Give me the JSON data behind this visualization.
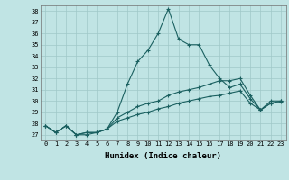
{
  "title": "",
  "xlabel": "Humidex (Indice chaleur)",
  "ylabel": "",
  "bg_color": "#c0e4e4",
  "grid_color": "#a0c8c8",
  "line_color": "#1a6060",
  "xlim": [
    -0.5,
    23.5
  ],
  "ylim": [
    26.5,
    38.5
  ],
  "yticks": [
    27,
    28,
    29,
    30,
    31,
    32,
    33,
    34,
    35,
    36,
    37,
    38
  ],
  "xticks": [
    0,
    1,
    2,
    3,
    4,
    5,
    6,
    7,
    8,
    9,
    10,
    11,
    12,
    13,
    14,
    15,
    16,
    17,
    18,
    19,
    20,
    21,
    22,
    23
  ],
  "line1": [
    27.8,
    27.2,
    27.8,
    27.0,
    27.0,
    27.2,
    27.5,
    29.0,
    31.5,
    33.5,
    34.5,
    36.0,
    38.2,
    35.5,
    35.0,
    35.0,
    33.2,
    32.0,
    31.2,
    31.5,
    30.2,
    29.2,
    30.0,
    30.0
  ],
  "line2": [
    27.8,
    27.2,
    27.8,
    27.0,
    27.2,
    27.2,
    27.5,
    28.5,
    29.0,
    29.5,
    29.8,
    30.0,
    30.5,
    30.8,
    31.0,
    31.2,
    31.5,
    31.8,
    31.8,
    32.0,
    30.5,
    29.2,
    29.8,
    30.0
  ],
  "line3": [
    27.8,
    27.2,
    27.8,
    27.0,
    27.2,
    27.2,
    27.5,
    28.2,
    28.5,
    28.8,
    29.0,
    29.3,
    29.5,
    29.8,
    30.0,
    30.2,
    30.4,
    30.5,
    30.7,
    30.9,
    29.8,
    29.2,
    29.8,
    29.9
  ]
}
